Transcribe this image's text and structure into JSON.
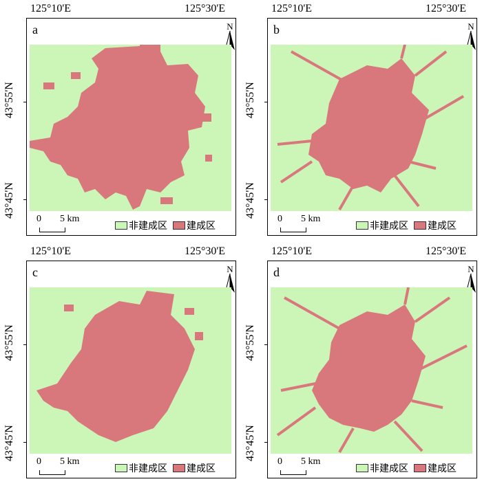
{
  "coordinates": {
    "lon_left": "125°10'E",
    "lon_right": "125°30'E",
    "lat_upper": "43°55'N",
    "lat_lower": "43°45'N"
  },
  "north_label": "N",
  "scale": {
    "zero": "0",
    "five": "5 km"
  },
  "legend": {
    "non_built": "非建成区",
    "built": "建成区",
    "non_built_color": "#ccf5b8",
    "built_color": "#d9787c"
  },
  "panels": [
    {
      "id": "a",
      "letter": "a"
    },
    {
      "id": "b",
      "letter": "b"
    },
    {
      "id": "c",
      "letter": "c"
    },
    {
      "id": "d",
      "letter": "d"
    }
  ]
}
